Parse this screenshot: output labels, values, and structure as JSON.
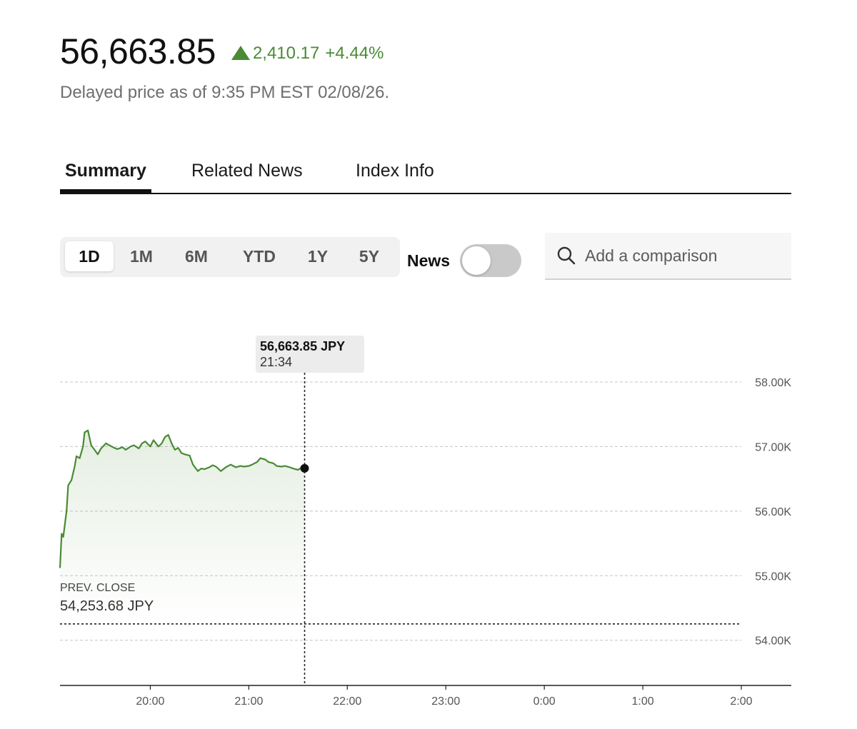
{
  "quote": {
    "price": "56,663.85",
    "change": "2,410.17",
    "change_pct": "+4.44%",
    "delayed_text": "Delayed price as of 9:35 PM EST 02/08/26.",
    "up_color": "#4a8a35"
  },
  "tabs": [
    {
      "label": "Summary",
      "active": true
    },
    {
      "label": "Related News",
      "active": false
    },
    {
      "label": "Index Info",
      "active": false
    }
  ],
  "ranges": [
    {
      "label": "1D",
      "active": true
    },
    {
      "label": "1M",
      "active": false
    },
    {
      "label": "6M",
      "active": false
    },
    {
      "label": "YTD",
      "active": false
    },
    {
      "label": "1Y",
      "active": false
    },
    {
      "label": "5Y",
      "active": false
    }
  ],
  "news_toggle": {
    "label": "News",
    "on": false
  },
  "comparison": {
    "placeholder": "Add a comparison",
    "icon": "search-icon"
  },
  "tooltip": {
    "price": "56,663.85 JPY",
    "time": "21:34"
  },
  "prev_close": {
    "label": "PREV. CLOSE",
    "value": "54,253.68 JPY"
  },
  "chart_data": {
    "type": "area",
    "y_unit": "JPY",
    "ylim": [
      53300,
      58000
    ],
    "xlim": [
      "19:05",
      "2:00"
    ],
    "y_ticks": [
      {
        "value": 58000,
        "label": "58.00K"
      },
      {
        "value": 57000,
        "label": "57.00K"
      },
      {
        "value": 56000,
        "label": "56.00K"
      },
      {
        "value": 55000,
        "label": "55.00K"
      },
      {
        "value": 54000,
        "label": "54.00K"
      }
    ],
    "x_ticks": [
      "20:00",
      "21:00",
      "22:00",
      "23:00",
      "0:00",
      "1:00",
      "2:00"
    ],
    "prev_close": 54253.68,
    "cursor": {
      "time": "21:34",
      "value": 56663.85
    },
    "series": [
      {
        "color": "#4a8a35",
        "x": [
          "19:05",
          "19:06",
          "19:07",
          "19:09",
          "19:10",
          "19:12",
          "19:14",
          "19:15",
          "19:17",
          "19:19",
          "19:20",
          "19:22",
          "19:24",
          "19:26",
          "19:28",
          "19:30",
          "19:33",
          "19:35",
          "19:38",
          "19:40",
          "19:43",
          "19:45",
          "19:48",
          "19:50",
          "19:53",
          "19:55",
          "19:57",
          "20:00",
          "20:02",
          "20:05",
          "20:07",
          "20:09",
          "20:11",
          "20:13",
          "20:15",
          "20:17",
          "20:19",
          "20:21",
          "20:24",
          "20:26",
          "20:29",
          "20:31",
          "20:33",
          "20:36",
          "20:38",
          "20:40",
          "20:43",
          "20:46",
          "20:49",
          "20:52",
          "20:55",
          "20:57",
          "21:00",
          "21:02",
          "21:05",
          "21:07",
          "21:10",
          "21:12",
          "21:15",
          "21:17",
          "21:20",
          "21:22",
          "21:25",
          "21:27",
          "21:30",
          "21:32",
          "21:34"
        ],
        "y": [
          55120,
          55650,
          55600,
          56000,
          56400,
          56480,
          56700,
          56850,
          56820,
          57000,
          57220,
          57250,
          57020,
          56950,
          56880,
          56970,
          57050,
          57020,
          56980,
          56960,
          56990,
          56950,
          57000,
          57020,
          56970,
          57050,
          57080,
          57000,
          57100,
          57000,
          57050,
          57150,
          57180,
          57050,
          56950,
          56980,
          56900,
          56880,
          56860,
          56720,
          56620,
          56660,
          56650,
          56680,
          56710,
          56690,
          56620,
          56680,
          56720,
          56680,
          56700,
          56690,
          56700,
          56720,
          56760,
          56820,
          56800,
          56760,
          56740,
          56700,
          56690,
          56700,
          56680,
          56660,
          56640,
          56670,
          56663.85
        ]
      }
    ]
  }
}
